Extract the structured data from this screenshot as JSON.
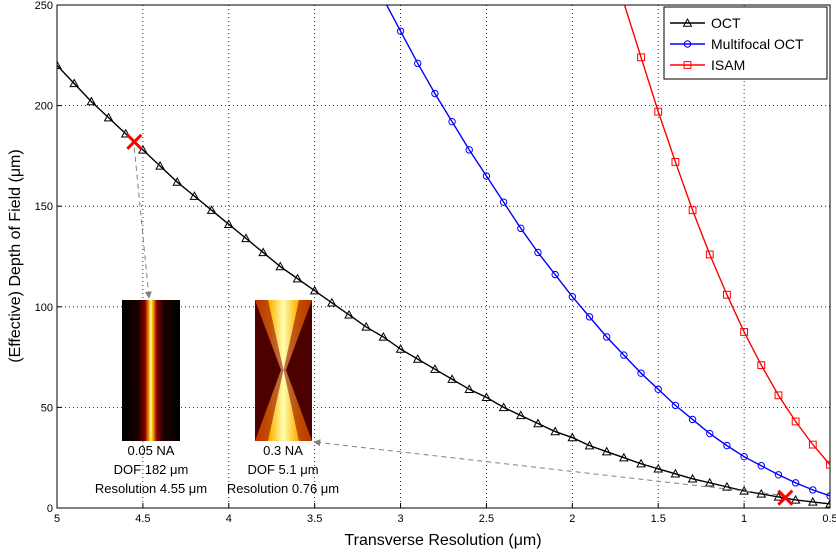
{
  "chart_data": {
    "type": "line",
    "xlabel": "Transverse Resolution  (μm)",
    "ylabel": "(Effective) Depth of Field  (μm)",
    "xlim": [
      5,
      0.5
    ],
    "ylim": [
      0,
      250
    ],
    "x_reversed": true,
    "grid": true,
    "legend_position": "top-right",
    "xticks": [
      "5",
      "4.5",
      "4",
      "3.5",
      "3",
      "2.5",
      "2",
      "1.5",
      "1",
      "0.5"
    ],
    "yticks": [
      "0",
      "50",
      "100",
      "150",
      "200",
      "250"
    ],
    "series": [
      {
        "name": "OCT",
        "color": "#000000",
        "marker": "triangle",
        "x": [
          5.0,
          4.9,
          4.8,
          4.7,
          4.6,
          4.5,
          4.4,
          4.3,
          4.2,
          4.1,
          4.0,
          3.9,
          3.8,
          3.7,
          3.6,
          3.5,
          3.4,
          3.3,
          3.2,
          3.1,
          3.0,
          2.9,
          2.8,
          2.7,
          2.6,
          2.5,
          2.4,
          2.3,
          2.2,
          2.1,
          2.0,
          1.9,
          1.8,
          1.7,
          1.6,
          1.5,
          1.4,
          1.3,
          1.2,
          1.1,
          1.0,
          0.9,
          0.8,
          0.7,
          0.6,
          0.5
        ],
        "y": [
          220,
          211,
          202,
          194,
          186,
          178,
          170,
          162,
          155,
          148,
          141,
          134,
          127,
          120,
          114,
          108,
          102,
          96,
          90,
          85,
          79,
          74,
          69,
          64,
          59,
          55,
          50,
          46,
          42,
          38,
          35,
          31,
          28,
          25,
          22,
          19.5,
          17,
          14.5,
          12.5,
          10.5,
          8.5,
          7,
          5.5,
          4,
          3,
          2
        ]
      },
      {
        "name": "Multifocal OCT",
        "color": "#0000ff",
        "marker": "circle",
        "x": [
          3.0,
          2.9,
          2.8,
          2.7,
          2.6,
          2.5,
          2.4,
          2.3,
          2.2,
          2.1,
          2.0,
          1.9,
          1.8,
          1.7,
          1.6,
          1.5,
          1.4,
          1.3,
          1.2,
          1.1,
          1.0,
          0.9,
          0.8,
          0.7,
          0.6,
          0.5
        ],
        "y": [
          237,
          221,
          206,
          192,
          178,
          165,
          152,
          139,
          127,
          116,
          105,
          95,
          85,
          76,
          67,
          59,
          51,
          44,
          37,
          31,
          25.5,
          21,
          16.5,
          12.5,
          9,
          6
        ]
      },
      {
        "name": "ISAM",
        "color": "#ff0000",
        "marker": "square",
        "x": [
          1.6,
          1.5,
          1.4,
          1.3,
          1.2,
          1.1,
          1.0,
          0.9,
          0.8,
          0.7,
          0.6,
          0.5
        ],
        "y": [
          224,
          197,
          172,
          148,
          126,
          106,
          87.5,
          71,
          56,
          43,
          31.5,
          21.5
        ]
      }
    ],
    "highlight_points": [
      {
        "x": 4.55,
        "y": 182,
        "color": "#ff0000"
      },
      {
        "x": 0.76,
        "y": 5.1,
        "color": "#ff0000"
      }
    ],
    "annotations": [
      {
        "lines": [
          "0.05 NA",
          "DOF 182 μm",
          "Resolution 4.55 μm"
        ]
      },
      {
        "lines": [
          "0.3 NA",
          "DOF 5.1 μm",
          "Resolution 0.76 μm"
        ]
      }
    ]
  }
}
